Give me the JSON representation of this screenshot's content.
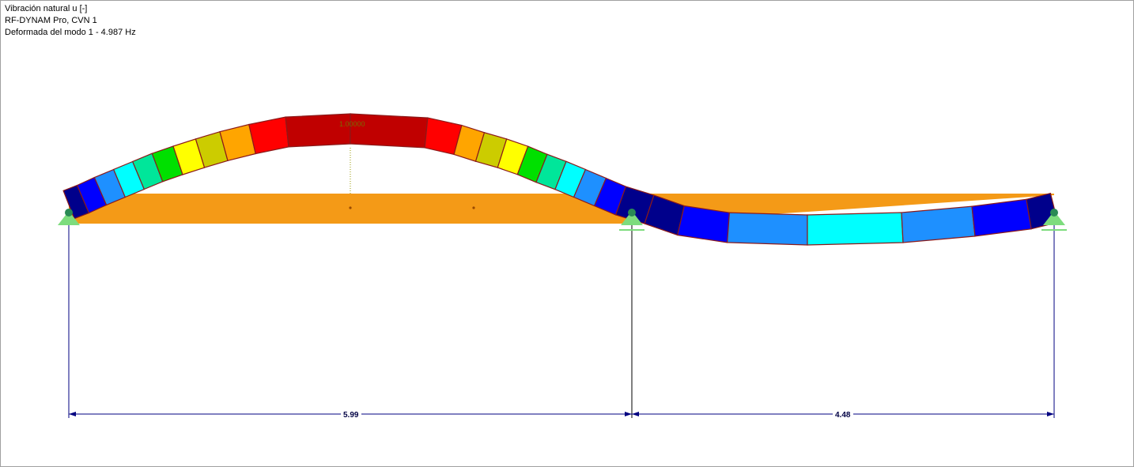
{
  "header": {
    "line1": "Vibración natural u [-]",
    "line2": "RF-DYNAM Pro, CVN 1",
    "line3": "Deformada del modo 1 - 4.987 Hz"
  },
  "model": {
    "max_label": "1.00000",
    "spans": [
      {
        "label": "5.99",
        "length": 5.99
      },
      {
        "label": "4.48",
        "length": 4.48
      }
    ],
    "colors": {
      "beam": "#f49a17",
      "outline": "#8b1a1a",
      "support": "#7ddc7d",
      "support_node": "#2a8a55",
      "dimension": "#000080"
    },
    "legend_scale": [
      "#00008b",
      "#0000ff",
      "#1e90ff",
      "#00ffff",
      "#00e69a",
      "#00e000",
      "#ffff00",
      "#cccc00",
      "#ffa500",
      "#ff0000",
      "#c00000"
    ]
  }
}
